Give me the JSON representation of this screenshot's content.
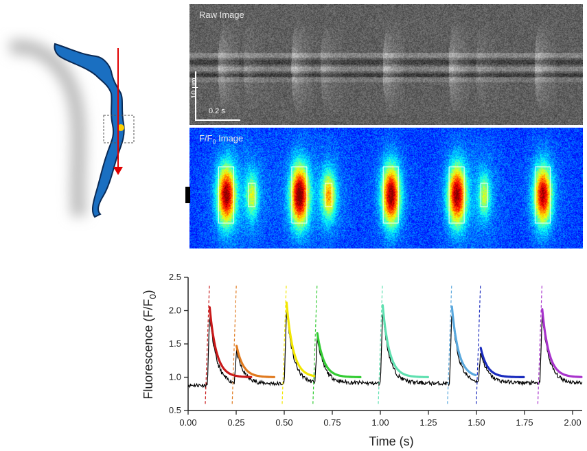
{
  "panels": {
    "raw_label": "Raw Image",
    "ff0_label": "F/F",
    "ff0_label_sub": "0",
    "ff0_label_suffix": " Image",
    "scale_um": "10 μm",
    "scale_s": "0.2 s"
  },
  "colors": {
    "cell_fill": "#1a6fc1",
    "cell_outline": "#0a2a55",
    "arrow": "#e00000",
    "hotspot": "#ffd000"
  },
  "chart_data": {
    "type": "line",
    "xlabel": "Time (s)",
    "ylabel": "Fluorescence (F/F",
    "ylabel_sub": "0",
    "ylabel_suffix": ")",
    "xlim": [
      0.0,
      2.05
    ],
    "ylim": [
      0.5,
      2.5
    ],
    "xticks": [
      "0.00",
      "0.25",
      "0.50",
      "0.75",
      "1.00",
      "1.25",
      "1.50",
      "1.75",
      "2.00"
    ],
    "yticks": [
      "0.5",
      "1.0",
      "1.5",
      "2.0",
      "2.5"
    ],
    "events": [
      {
        "onset": 0.1,
        "peak": 2.05,
        "color": "#c8191a",
        "fit_end": 0.33
      },
      {
        "onset": 0.24,
        "peak": 1.47,
        "color": "#e07a1f",
        "fit_end": 0.45
      },
      {
        "onset": 0.5,
        "peak": 2.12,
        "color": "#f2e600",
        "fit_end": 0.66
      },
      {
        "onset": 0.66,
        "peak": 1.66,
        "color": "#33cc33",
        "fit_end": 0.9
      },
      {
        "onset": 1.0,
        "peak": 2.08,
        "color": "#5fe0b0",
        "fit_end": 1.25
      },
      {
        "onset": 1.36,
        "peak": 2.06,
        "color": "#5aa8dd",
        "fit_end": 1.5
      },
      {
        "onset": 1.51,
        "peak": 1.44,
        "color": "#1a2bbd",
        "fit_end": 1.75
      },
      {
        "onset": 1.83,
        "peak": 2.02,
        "color": "#a833cc",
        "fit_end": 2.05
      }
    ],
    "baseline": 0.88,
    "trace_color": "#000000",
    "grid": false
  }
}
